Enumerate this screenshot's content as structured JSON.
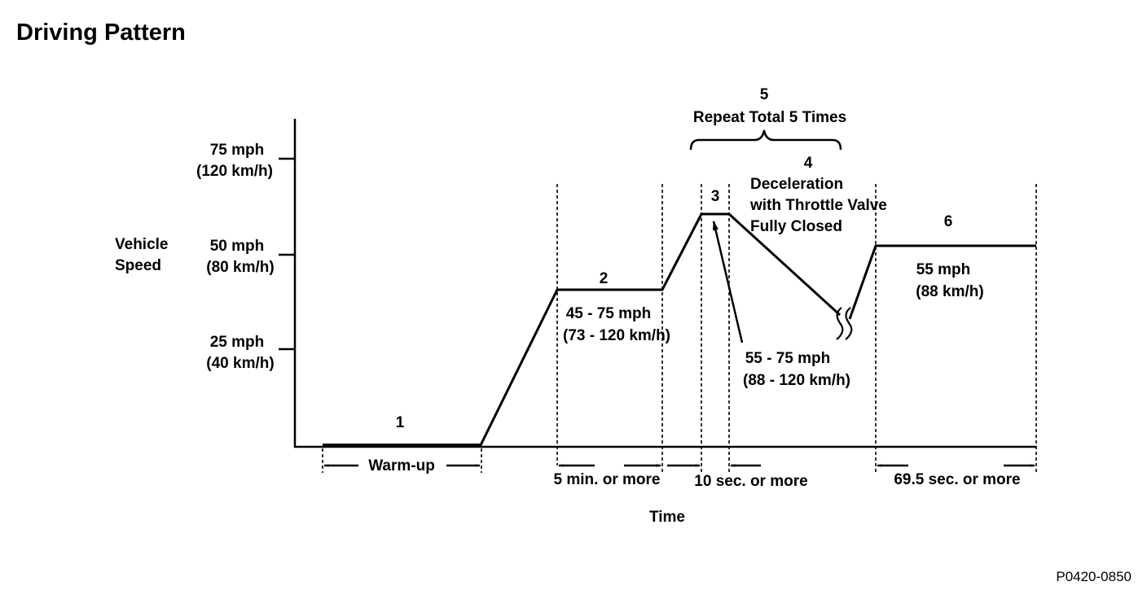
{
  "title": "Driving Pattern",
  "figure_code": "P0420-0850",
  "axes": {
    "y_label_line1": "Vehicle",
    "y_label_line2": "Speed",
    "x_label": "Time",
    "y_ticks": [
      {
        "mph": "75 mph",
        "kmh": "(120 km/h)",
        "value": 75
      },
      {
        "mph": "50 mph",
        "kmh": "(80 km/h)",
        "value": 50
      },
      {
        "mph": "25 mph",
        "kmh": "(40 km/h)",
        "value": 25
      }
    ]
  },
  "steps": {
    "s1": {
      "number": "1",
      "duration": "Warm-up"
    },
    "s2": {
      "number": "2",
      "speed_mph": "45 - 75 mph",
      "speed_kmh": "(73 - 120 km/h)",
      "duration": "5 min. or more"
    },
    "s3": {
      "number": "3",
      "speed_mph": "55 - 75 mph",
      "speed_kmh": "(88 - 120 km/h)",
      "duration": "10 sec. or more"
    },
    "s4": {
      "number": "4",
      "line1": "Deceleration",
      "line2": "with Throttle Valve",
      "line3": "Fully Closed"
    },
    "s5": {
      "number": "5",
      "label": "Repeat Total 5 Times"
    },
    "s6": {
      "number": "6",
      "speed_mph": "55 mph",
      "speed_kmh": "(88 km/h)",
      "duration": "69.5 sec. or more"
    }
  },
  "colors": {
    "ink": "#000000",
    "background": "#ffffff"
  }
}
